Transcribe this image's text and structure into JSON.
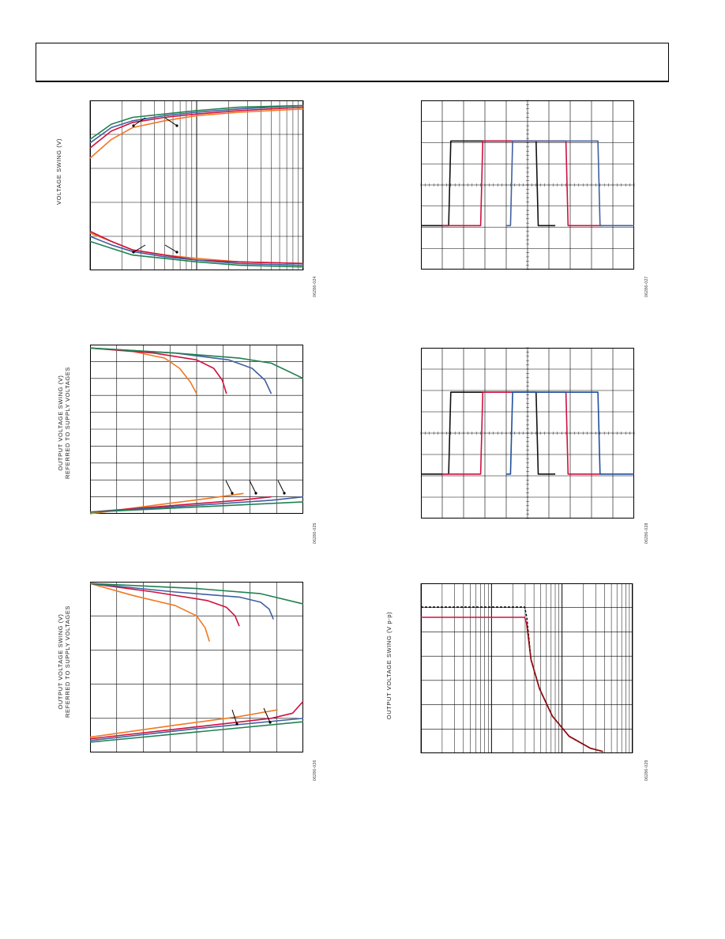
{
  "figures": {
    "fig1": {
      "ylabel": "VOLTAGE SWING (V)",
      "id": "06286-024"
    },
    "fig2": {
      "ylabel_line1": "OUTPUT VOLTAGE SWING (V)",
      "ylabel_line2": "REFERRED TO SUPPLY VOLTAGES",
      "id": "06286-025"
    },
    "fig3": {
      "ylabel_line1": "OUTPUT VOLTAGE SWING (V)",
      "ylabel_line2": "REFERRED TO SUPPLY VOLTAGES",
      "id": "06286-026"
    },
    "fig4": {
      "id": "06286-027"
    },
    "fig5": {
      "id": "06286-028"
    },
    "fig6": {
      "ylabel": "OUTPUT VOLTAGE SWING (V p-p)",
      "id": "06286-029"
    }
  },
  "colors": {
    "orange": "#f07820",
    "red": "#d01040",
    "blue": "#4060a0",
    "green": "#208050",
    "black": "#111111",
    "dark_blue": "#1f4f9a",
    "dark_red": "#8a1010"
  },
  "chart_data": [
    {
      "type": "line",
      "name": "fig1",
      "x_scale": "log",
      "xlim": [
        0,
        1
      ],
      "ylim": [
        0,
        1
      ],
      "grid": true,
      "series": [
        {
          "color": "orange",
          "x": [
            0,
            0.1,
            0.2,
            0.35,
            0.5,
            0.7,
            1
          ],
          "y": [
            0.66,
            0.77,
            0.84,
            0.88,
            0.91,
            0.93,
            0.95
          ]
        },
        {
          "color": "red",
          "x": [
            0,
            0.1,
            0.2,
            0.35,
            0.5,
            0.7,
            1
          ],
          "y": [
            0.72,
            0.82,
            0.87,
            0.9,
            0.92,
            0.94,
            0.96
          ]
        },
        {
          "color": "blue",
          "x": [
            0,
            0.1,
            0.2,
            0.35,
            0.5,
            0.7,
            1
          ],
          "y": [
            0.75,
            0.84,
            0.88,
            0.91,
            0.93,
            0.95,
            0.97
          ]
        },
        {
          "color": "green",
          "x": [
            0,
            0.1,
            0.2,
            0.35,
            0.5,
            0.7,
            1
          ],
          "y": [
            0.77,
            0.86,
            0.9,
            0.92,
            0.94,
            0.96,
            0.97
          ]
        },
        {
          "color": "orange",
          "x": [
            0,
            0.1,
            0.2,
            0.35,
            0.5,
            0.7,
            1
          ],
          "y": [
            0.22,
            0.17,
            0.12,
            0.09,
            0.07,
            0.05,
            0.04
          ]
        },
        {
          "color": "red",
          "x": [
            0,
            0.1,
            0.2,
            0.35,
            0.5,
            0.7,
            1
          ],
          "y": [
            0.23,
            0.17,
            0.12,
            0.09,
            0.06,
            0.05,
            0.04
          ]
        },
        {
          "color": "blue",
          "x": [
            0,
            0.1,
            0.2,
            0.35,
            0.5,
            0.7,
            1
          ],
          "y": [
            0.2,
            0.15,
            0.11,
            0.08,
            0.06,
            0.04,
            0.03
          ]
        },
        {
          "color": "green",
          "x": [
            0,
            0.1,
            0.2,
            0.35,
            0.5,
            0.7,
            1
          ],
          "y": [
            0.17,
            0.13,
            0.09,
            0.07,
            0.05,
            0.03,
            0.02
          ]
        }
      ]
    },
    {
      "type": "line",
      "name": "fig2",
      "xlim": [
        0,
        1
      ],
      "ylim": [
        0,
        1
      ],
      "grid": true,
      "series": [
        {
          "color": "orange",
          "x": [
            0,
            0.2,
            0.35,
            0.42,
            0.47,
            0.5
          ],
          "y": [
            0.98,
            0.96,
            0.92,
            0.86,
            0.78,
            0.71
          ]
        },
        {
          "color": "red",
          "x": [
            0,
            0.3,
            0.5,
            0.58,
            0.62,
            0.64
          ],
          "y": [
            0.98,
            0.95,
            0.91,
            0.86,
            0.79,
            0.71
          ]
        },
        {
          "color": "blue",
          "x": [
            0,
            0.4,
            0.65,
            0.76,
            0.82,
            0.85
          ],
          "y": [
            0.98,
            0.95,
            0.91,
            0.86,
            0.79,
            0.71
          ]
        },
        {
          "color": "green",
          "x": [
            0,
            0.4,
            0.7,
            0.85,
            1
          ],
          "y": [
            0.98,
            0.95,
            0.92,
            0.89,
            0.8
          ]
        },
        {
          "color": "orange",
          "x": [
            0,
            0.3,
            0.55,
            0.72
          ],
          "y": [
            0.0,
            0.05,
            0.09,
            0.12
          ]
        },
        {
          "color": "red",
          "x": [
            0,
            0.4,
            0.7,
            0.85
          ],
          "y": [
            0.01,
            0.05,
            0.08,
            0.1
          ]
        },
        {
          "color": "blue",
          "x": [
            0,
            0.5,
            0.85,
            1
          ],
          "y": [
            0.01,
            0.05,
            0.08,
            0.1
          ]
        },
        {
          "color": "green",
          "x": [
            0,
            0.5,
            1
          ],
          "y": [
            0.01,
            0.04,
            0.07
          ]
        }
      ]
    },
    {
      "type": "line",
      "name": "fig3",
      "xlim": [
        0,
        1
      ],
      "ylim": [
        0,
        1
      ],
      "grid": true,
      "series": [
        {
          "color": "orange",
          "x": [
            0,
            0.2,
            0.4,
            0.5,
            0.54,
            0.56
          ],
          "y": [
            0.99,
            0.92,
            0.86,
            0.8,
            0.73,
            0.65
          ]
        },
        {
          "color": "red",
          "x": [
            0,
            0.3,
            0.55,
            0.64,
            0.68,
            0.7
          ],
          "y": [
            0.99,
            0.94,
            0.89,
            0.85,
            0.8,
            0.74
          ]
        },
        {
          "color": "blue",
          "x": [
            0,
            0.4,
            0.7,
            0.8,
            0.84,
            0.86
          ],
          "y": [
            0.99,
            0.94,
            0.91,
            0.88,
            0.84,
            0.78
          ]
        },
        {
          "color": "green",
          "x": [
            0,
            0.5,
            0.8,
            1
          ],
          "y": [
            0.99,
            0.96,
            0.93,
            0.87
          ]
        },
        {
          "color": "orange",
          "x": [
            0,
            0.4,
            0.7,
            0.88
          ],
          "y": [
            0.09,
            0.16,
            0.21,
            0.25
          ]
        },
        {
          "color": "red",
          "x": [
            0,
            0.5,
            0.85,
            0.95,
            1
          ],
          "y": [
            0.08,
            0.15,
            0.2,
            0.23,
            0.3
          ]
        },
        {
          "color": "blue",
          "x": [
            0,
            0.5,
            1
          ],
          "y": [
            0.07,
            0.14,
            0.2
          ]
        },
        {
          "color": "green",
          "x": [
            0,
            0.5,
            1
          ],
          "y": [
            0.06,
            0.12,
            0.18
          ]
        }
      ]
    },
    {
      "type": "line",
      "name": "fig4",
      "xlim": [
        0,
        1
      ],
      "ylim": [
        0,
        1
      ],
      "grid": true,
      "series": [
        {
          "color": "black",
          "x": [
            0,
            0.13,
            0.14,
            0.54,
            0.55,
            0.63
          ],
          "y": [
            0.26,
            0.26,
            0.76,
            0.76,
            0.26,
            0.26
          ]
        },
        {
          "color": "red",
          "x": [
            0.1,
            0.28,
            0.29,
            0.68,
            0.69,
            0.85
          ],
          "y": [
            0.26,
            0.26,
            0.76,
            0.76,
            0.26,
            0.26
          ]
        },
        {
          "color": "blue",
          "x": [
            0.4,
            0.42,
            0.43,
            0.83,
            0.84,
            1
          ],
          "y": [
            0.26,
            0.26,
            0.76,
            0.76,
            0.26,
            0.26
          ]
        }
      ]
    },
    {
      "type": "line",
      "name": "fig5",
      "xlim": [
        0,
        1
      ],
      "ylim": [
        0,
        1
      ],
      "grid": true,
      "series": [
        {
          "color": "black",
          "x": [
            0,
            0.13,
            0.14,
            0.54,
            0.55,
            0.63
          ],
          "y": [
            0.26,
            0.26,
            0.74,
            0.74,
            0.26,
            0.26
          ]
        },
        {
          "color": "red",
          "x": [
            0.1,
            0.28,
            0.29,
            0.68,
            0.69,
            0.85
          ],
          "y": [
            0.26,
            0.26,
            0.74,
            0.74,
            0.26,
            0.26
          ]
        },
        {
          "color": "dark_blue",
          "x": [
            0.4,
            0.42,
            0.43,
            0.83,
            0.84,
            1
          ],
          "y": [
            0.26,
            0.26,
            0.74,
            0.74,
            0.26,
            0.26
          ]
        }
      ]
    },
    {
      "type": "line",
      "name": "fig6",
      "x_scale": "log",
      "xlim": [
        0,
        1
      ],
      "ylim": [
        0,
        1
      ],
      "grid": true,
      "series": [
        {
          "color": "black",
          "dashed": true,
          "x": [
            0,
            0.49,
            0.5,
            0.52,
            0.56,
            0.62,
            0.7,
            0.8,
            0.86
          ],
          "y": [
            0.86,
            0.86,
            0.8,
            0.55,
            0.38,
            0.22,
            0.1,
            0.03,
            0.01
          ]
        },
        {
          "color": "red",
          "x": [
            0,
            0.49,
            0.5,
            0.52,
            0.56,
            0.62,
            0.7,
            0.8,
            0.86
          ],
          "y": [
            0.8,
            0.8,
            0.76,
            0.55,
            0.38,
            0.22,
            0.1,
            0.03,
            0.01
          ]
        },
        {
          "color": "dark_red",
          "x": [
            0.5,
            0.52,
            0.56,
            0.62,
            0.7,
            0.8,
            0.86
          ],
          "y": [
            0.76,
            0.55,
            0.38,
            0.22,
            0.1,
            0.03,
            0.01
          ]
        }
      ]
    }
  ]
}
